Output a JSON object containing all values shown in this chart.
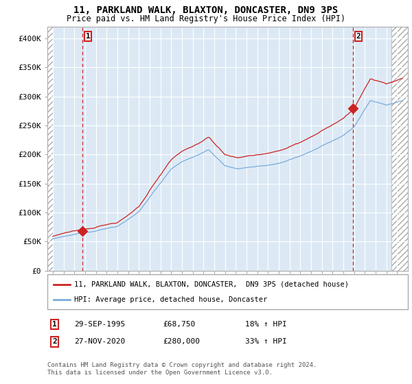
{
  "title": "11, PARKLAND WALK, BLAXTON, DONCASTER, DN9 3PS",
  "subtitle": "Price paid vs. HM Land Registry's House Price Index (HPI)",
  "background_color": "#ffffff",
  "plot_bg_color": "#dce9f5",
  "grid_color": "#ffffff",
  "sale1_date": 1995.75,
  "sale1_price": 68750,
  "sale2_date": 2020.9,
  "sale2_price": 280000,
  "annotation1_date": "29-SEP-1995",
  "annotation1_price": "£68,750",
  "annotation1_pct": "18% ↑ HPI",
  "annotation2_date": "27-NOV-2020",
  "annotation2_price": "£280,000",
  "annotation2_pct": "33% ↑ HPI",
  "legend1": "11, PARKLAND WALK, BLAXTON, DONCASTER,  DN9 3PS (detached house)",
  "legend2": "HPI: Average price, detached house, Doncaster",
  "footer": "Contains HM Land Registry data © Crown copyright and database right 2024.\nThis data is licensed under the Open Government Licence v3.0.",
  "ylim": [
    0,
    420000
  ],
  "xlim_start": 1992.5,
  "xlim_end": 2026.0,
  "hatch_right_start": 2024.5,
  "hatch_left_end": 1993.0,
  "sale_color": "#cc2222",
  "hpi_color": "#7aabdb",
  "vline_color": "#cc2222",
  "yticks": [
    0,
    50000,
    100000,
    150000,
    200000,
    250000,
    300000,
    350000,
    400000
  ],
  "ytick_labels": [
    "£0",
    "£50K",
    "£100K",
    "£150K",
    "£200K",
    "£250K",
    "£300K",
    "£350K",
    "£400K"
  ]
}
